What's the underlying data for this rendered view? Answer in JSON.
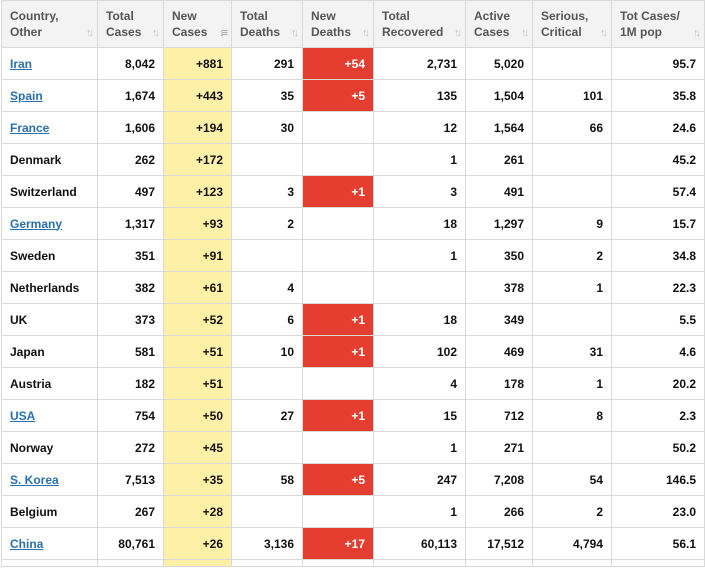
{
  "columns": [
    {
      "line1": "Country,",
      "line2": "Other"
    },
    {
      "line1": "Total",
      "line2": "Cases"
    },
    {
      "line1": "New",
      "line2": "Cases"
    },
    {
      "line1": "Total",
      "line2": "Deaths"
    },
    {
      "line1": "New",
      "line2": "Deaths"
    },
    {
      "line1": "Total",
      "line2": "Recovered"
    },
    {
      "line1": "Active",
      "line2": "Cases"
    },
    {
      "line1": "Serious,",
      "line2": "Critical"
    },
    {
      "line1": "Tot Cases/",
      "line2": "1M pop"
    }
  ],
  "sort": {
    "active_column": 2,
    "direction": "descending"
  },
  "colors": {
    "new_cases_highlight": "#fff0a8",
    "new_deaths_highlight": "#e53d2f",
    "link": "#2a6fb0"
  },
  "rows": [
    {
      "country": "Iran",
      "link": true,
      "total_cases": "8,042",
      "new_cases": "+881",
      "total_deaths": "291",
      "new_deaths": "+54",
      "total_recovered": "2,731",
      "active_cases": "5,020",
      "serious_critical": "",
      "tot_cases_per_1m": "95.7"
    },
    {
      "country": "Spain",
      "link": true,
      "total_cases": "1,674",
      "new_cases": "+443",
      "total_deaths": "35",
      "new_deaths": "+5",
      "total_recovered": "135",
      "active_cases": "1,504",
      "serious_critical": "101",
      "tot_cases_per_1m": "35.8"
    },
    {
      "country": "France",
      "link": true,
      "total_cases": "1,606",
      "new_cases": "+194",
      "total_deaths": "30",
      "new_deaths": "",
      "total_recovered": "12",
      "active_cases": "1,564",
      "serious_critical": "66",
      "tot_cases_per_1m": "24.6"
    },
    {
      "country": "Denmark",
      "link": false,
      "total_cases": "262",
      "new_cases": "+172",
      "total_deaths": "",
      "new_deaths": "",
      "total_recovered": "1",
      "active_cases": "261",
      "serious_critical": "",
      "tot_cases_per_1m": "45.2"
    },
    {
      "country": "Switzerland",
      "link": false,
      "total_cases": "497",
      "new_cases": "+123",
      "total_deaths": "3",
      "new_deaths": "+1",
      "total_recovered": "3",
      "active_cases": "491",
      "serious_critical": "",
      "tot_cases_per_1m": "57.4"
    },
    {
      "country": "Germany",
      "link": true,
      "total_cases": "1,317",
      "new_cases": "+93",
      "total_deaths": "2",
      "new_deaths": "",
      "total_recovered": "18",
      "active_cases": "1,297",
      "serious_critical": "9",
      "tot_cases_per_1m": "15.7"
    },
    {
      "country": "Sweden",
      "link": false,
      "total_cases": "351",
      "new_cases": "+91",
      "total_deaths": "",
      "new_deaths": "",
      "total_recovered": "1",
      "active_cases": "350",
      "serious_critical": "2",
      "tot_cases_per_1m": "34.8"
    },
    {
      "country": "Netherlands",
      "link": false,
      "total_cases": "382",
      "new_cases": "+61",
      "total_deaths": "4",
      "new_deaths": "",
      "total_recovered": "",
      "active_cases": "378",
      "serious_critical": "1",
      "tot_cases_per_1m": "22.3"
    },
    {
      "country": "UK",
      "link": false,
      "total_cases": "373",
      "new_cases": "+52",
      "total_deaths": "6",
      "new_deaths": "+1",
      "total_recovered": "18",
      "active_cases": "349",
      "serious_critical": "",
      "tot_cases_per_1m": "5.5"
    },
    {
      "country": "Japan",
      "link": false,
      "total_cases": "581",
      "new_cases": "+51",
      "total_deaths": "10",
      "new_deaths": "+1",
      "total_recovered": "102",
      "active_cases": "469",
      "serious_critical": "31",
      "tot_cases_per_1m": "4.6"
    },
    {
      "country": "Austria",
      "link": false,
      "total_cases": "182",
      "new_cases": "+51",
      "total_deaths": "",
      "new_deaths": "",
      "total_recovered": "4",
      "active_cases": "178",
      "serious_critical": "1",
      "tot_cases_per_1m": "20.2"
    },
    {
      "country": "USA",
      "link": true,
      "total_cases": "754",
      "new_cases": "+50",
      "total_deaths": "27",
      "new_deaths": "+1",
      "total_recovered": "15",
      "active_cases": "712",
      "serious_critical": "8",
      "tot_cases_per_1m": "2.3"
    },
    {
      "country": "Norway",
      "link": false,
      "total_cases": "272",
      "new_cases": "+45",
      "total_deaths": "",
      "new_deaths": "",
      "total_recovered": "1",
      "active_cases": "271",
      "serious_critical": "",
      "tot_cases_per_1m": "50.2"
    },
    {
      "country": "S. Korea",
      "link": true,
      "total_cases": "7,513",
      "new_cases": "+35",
      "total_deaths": "58",
      "new_deaths": "+5",
      "total_recovered": "247",
      "active_cases": "7,208",
      "serious_critical": "54",
      "tot_cases_per_1m": "146.5"
    },
    {
      "country": "Belgium",
      "link": false,
      "total_cases": "267",
      "new_cases": "+28",
      "total_deaths": "",
      "new_deaths": "",
      "total_recovered": "1",
      "active_cases": "266",
      "serious_critical": "2",
      "tot_cases_per_1m": "23.0"
    },
    {
      "country": "China",
      "link": true,
      "total_cases": "80,761",
      "new_cases": "+26",
      "total_deaths": "3,136",
      "new_deaths": "+17",
      "total_recovered": "60,113",
      "active_cases": "17,512",
      "serious_critical": "4,794",
      "tot_cases_per_1m": "56.1"
    }
  ]
}
